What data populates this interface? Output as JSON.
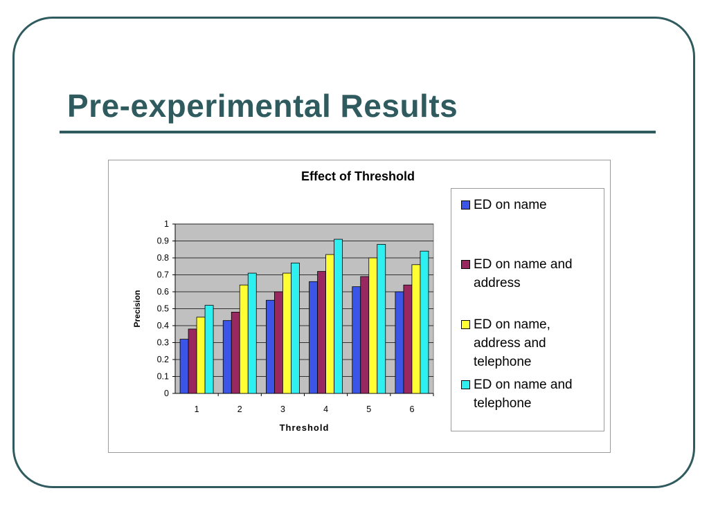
{
  "slide": {
    "title": "Pre-experimental Results"
  },
  "chart_data": {
    "type": "bar",
    "title": "Effect of Threshold",
    "xlabel": "Threshold",
    "ylabel": "Precision",
    "categories": [
      "1",
      "2",
      "3",
      "4",
      "5",
      "6"
    ],
    "ylim": [
      0,
      1
    ],
    "yticks": [
      "0",
      "0.1",
      "0.2",
      "0.3",
      "0.4",
      "0.5",
      "0.6",
      "0.7",
      "0.8",
      "0.9",
      "1"
    ],
    "grid": true,
    "legend_position": "right",
    "plot_background": "#c0c0c0",
    "series": [
      {
        "name": "ED on name",
        "color": "#3a55e8",
        "values": [
          0.32,
          0.43,
          0.55,
          0.66,
          0.63,
          0.6
        ]
      },
      {
        "name": "ED on name and address",
        "color": "#98285f",
        "values": [
          0.38,
          0.48,
          0.6,
          0.72,
          0.69,
          0.64
        ]
      },
      {
        "name": "ED on name, address and telephone",
        "color": "#ffff33",
        "values": [
          0.45,
          0.64,
          0.71,
          0.82,
          0.8,
          0.76
        ]
      },
      {
        "name": "ED on name and telephone",
        "color": "#2ef0f0",
        "values": [
          0.52,
          0.71,
          0.77,
          0.91,
          0.88,
          0.84
        ]
      }
    ]
  }
}
